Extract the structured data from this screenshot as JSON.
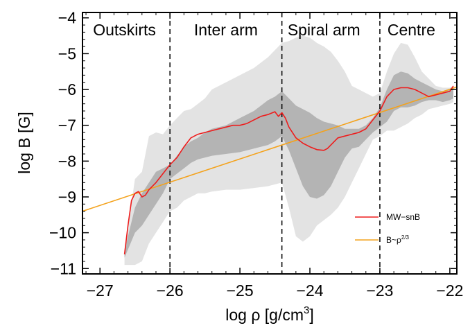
{
  "chart_data": {
    "type": "line",
    "xlabel": "log ρ [g/cm",
    "xlabel_sup": "3",
    "xlabel_end": "]",
    "ylabel": "log B [G]",
    "xlim": [
      -27.25,
      -21.9
    ],
    "ylim": [
      -11.15,
      -3.85
    ],
    "xticks": [
      -27,
      -26,
      -25,
      -24,
      -23,
      -22
    ],
    "xtick_labels": [
      "−27",
      "−26",
      "−25",
      "−24",
      "−23",
      "−22"
    ],
    "yticks": [
      -11,
      -10,
      -9,
      -8,
      -7,
      -6,
      -5,
      -4
    ],
    "ytick_labels": [
      "−11",
      "−10",
      "−9",
      "−8",
      "−7",
      "−6",
      "−5",
      "−4"
    ],
    "regions": [
      {
        "label": "Outskirts",
        "x": -26.65
      },
      {
        "label": "Inter arm",
        "x": -25.2
      },
      {
        "label": "Spiral arm",
        "x": -23.8
      },
      {
        "label": "Centre",
        "x": -22.55
      }
    ],
    "dividers": [
      -26.0,
      -24.4,
      -23.0
    ],
    "legend_position": "bottom-right",
    "colors": {
      "outer_band": "#e3e3e3",
      "inner_band": "#b4b4b4",
      "mw_line": "#ee1c1c",
      "scaling_line": "#f4a21b"
    },
    "series": [
      {
        "name": "MW−snB",
        "color": "#ee1c1c",
        "x": [
          -26.65,
          -26.6,
          -26.55,
          -26.5,
          -26.45,
          -26.4,
          -26.35,
          -26.3,
          -26.2,
          -26.1,
          -26.0,
          -25.9,
          -25.8,
          -25.7,
          -25.6,
          -25.5,
          -25.4,
          -25.3,
          -25.2,
          -25.1,
          -25.0,
          -24.9,
          -24.8,
          -24.7,
          -24.6,
          -24.5,
          -24.45,
          -24.4,
          -24.35,
          -24.3,
          -24.2,
          -24.1,
          -24.0,
          -23.9,
          -23.8,
          -23.75,
          -23.7,
          -23.6,
          -23.5,
          -23.4,
          -23.3,
          -23.2,
          -23.1,
          -23.0,
          -22.9,
          -22.8,
          -22.7,
          -22.6,
          -22.5,
          -22.4,
          -22.3,
          -22.2,
          -22.1,
          -22.0,
          -21.95
        ],
        "y": [
          -10.6,
          -9.8,
          -9.1,
          -8.9,
          -8.85,
          -9.0,
          -8.95,
          -8.8,
          -8.6,
          -8.35,
          -8.1,
          -7.9,
          -7.6,
          -7.35,
          -7.25,
          -7.2,
          -7.15,
          -7.1,
          -7.05,
          -7.0,
          -7.0,
          -6.95,
          -6.85,
          -6.75,
          -6.7,
          -6.62,
          -6.75,
          -6.65,
          -6.8,
          -7.05,
          -7.35,
          -7.5,
          -7.6,
          -7.68,
          -7.7,
          -7.65,
          -7.55,
          -7.35,
          -7.3,
          -7.25,
          -7.2,
          -7.1,
          -6.85,
          -6.6,
          -6.2,
          -6.0,
          -5.95,
          -5.95,
          -6.0,
          -6.1,
          -6.2,
          -6.15,
          -6.1,
          -6.05,
          -5.9
        ]
      },
      {
        "name": "B~ρ",
        "name_sup": "2/3",
        "color": "#f4a21b",
        "x": [
          -27.25,
          -21.9
        ],
        "y": [
          -9.4,
          -5.93
        ]
      }
    ],
    "bands": {
      "x": [
        -26.65,
        -26.5,
        -26.4,
        -26.3,
        -26.2,
        -26.1,
        -26.0,
        -25.9,
        -25.8,
        -25.7,
        -25.6,
        -25.5,
        -25.4,
        -25.2,
        -25.0,
        -24.8,
        -24.6,
        -24.5,
        -24.4,
        -24.3,
        -24.2,
        -24.1,
        -24.0,
        -23.9,
        -23.8,
        -23.7,
        -23.6,
        -23.5,
        -23.4,
        -23.3,
        -23.2,
        -23.1,
        -23.0,
        -22.9,
        -22.8,
        -22.7,
        -22.6,
        -22.5,
        -22.4,
        -22.3,
        -22.2,
        -22.1,
        -22.0,
        -21.95
      ],
      "outer_upper": [
        -10.5,
        -8.5,
        -8.3,
        -7.3,
        -7.2,
        -7.25,
        -7.0,
        -6.8,
        -6.6,
        -6.55,
        -6.4,
        -6.25,
        -6.0,
        -5.8,
        -5.6,
        -5.4,
        -5.1,
        -4.9,
        -4.7,
        -4.65,
        -4.55,
        -4.5,
        -4.55,
        -4.7,
        -4.8,
        -4.95,
        -5.2,
        -5.5,
        -5.9,
        -6.0,
        -6.1,
        -6.2,
        -6.1,
        -5.5,
        -5.0,
        -4.7,
        -4.75,
        -5.1,
        -5.5,
        -5.7,
        -5.9,
        -5.95,
        -5.95,
        -5.9
      ],
      "inner_upper": [
        -10.5,
        -9.3,
        -8.9,
        -8.6,
        -8.3,
        -8.2,
        -8.1,
        -7.85,
        -7.6,
        -7.45,
        -7.35,
        -7.2,
        -7.1,
        -7.0,
        -6.8,
        -6.6,
        -6.3,
        -6.2,
        -6.05,
        -6.25,
        -6.45,
        -6.55,
        -6.65,
        -6.8,
        -6.9,
        -6.95,
        -7.0,
        -7.1,
        -7.1,
        -7.1,
        -7.0,
        -6.8,
        -6.5,
        -6.0,
        -5.6,
        -5.5,
        -5.55,
        -5.7,
        -5.8,
        -5.9,
        -6.0,
        -6.05,
        -6.0,
        -5.95
      ],
      "inner_lower": [
        -10.7,
        -10.0,
        -9.8,
        -9.5,
        -9.2,
        -8.9,
        -8.5,
        -8.35,
        -8.2,
        -8.05,
        -7.95,
        -7.9,
        -7.85,
        -7.8,
        -7.75,
        -7.65,
        -7.55,
        -7.45,
        -7.3,
        -7.7,
        -8.2,
        -8.7,
        -9.0,
        -9.05,
        -8.95,
        -8.7,
        -8.3,
        -7.9,
        -7.65,
        -7.6,
        -7.4,
        -7.2,
        -7.05,
        -6.9,
        -6.6,
        -6.5,
        -6.5,
        -6.45,
        -6.35,
        -6.3,
        -6.3,
        -6.35,
        -6.3,
        -6.25
      ],
      "outer_lower": [
        -10.9,
        -10.9,
        -10.8,
        -10.3,
        -10.0,
        -9.7,
        -9.4,
        -9.3,
        -9.1,
        -9.0,
        -8.9,
        -8.9,
        -8.85,
        -8.8,
        -8.8,
        -8.75,
        -8.7,
        -8.65,
        -8.6,
        -9.3,
        -10.1,
        -10.25,
        -10.1,
        -9.8,
        -9.65,
        -9.5,
        -9.3,
        -9.0,
        -8.6,
        -8.2,
        -7.8,
        -7.4,
        -7.3,
        -7.15,
        -7.15,
        -7.05,
        -6.95,
        -6.8,
        -6.7,
        -6.55,
        -6.5,
        -6.45,
        -6.4,
        -6.35
      ]
    }
  }
}
